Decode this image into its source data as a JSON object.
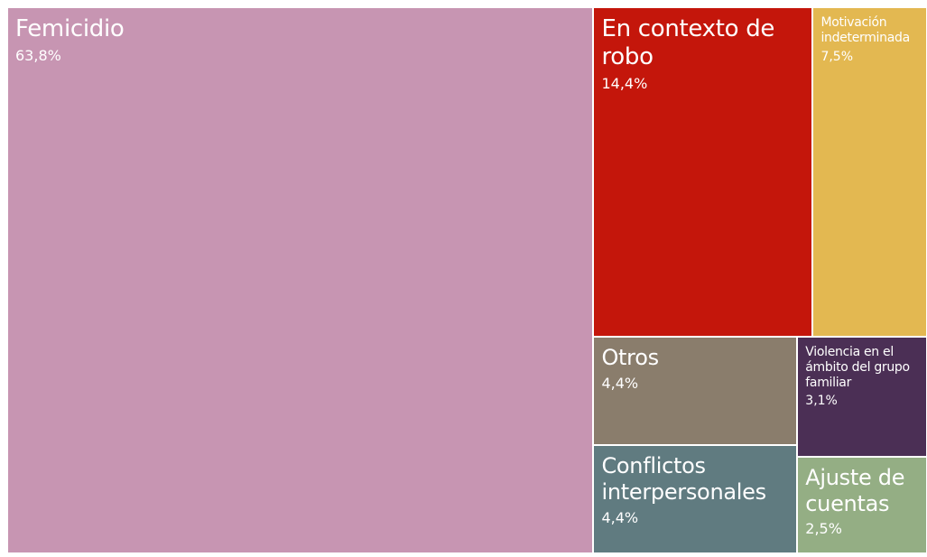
{
  "chart_data": {
    "type": "treemap",
    "categories": [
      "Femicidio",
      "En contexto de robo",
      "Motivación indeterminada",
      "Otros",
      "Conflictos interpersonales",
      "Violencia en el ámbito del grupo familiar",
      "Ajuste de cuentas"
    ],
    "values": [
      63.8,
      14.4,
      7.5,
      4.4,
      4.4,
      3.1,
      2.5
    ],
    "value_labels": [
      "63,8%",
      "14,4%",
      "7,5%",
      "4,4%",
      "4,4%",
      "3,1%",
      "2,5%"
    ],
    "colors": [
      "#c795b2",
      "#c4160b",
      "#e3b851",
      "#8a7d6c",
      "#607b80",
      "#4b2f55",
      "#94ae84"
    ]
  }
}
